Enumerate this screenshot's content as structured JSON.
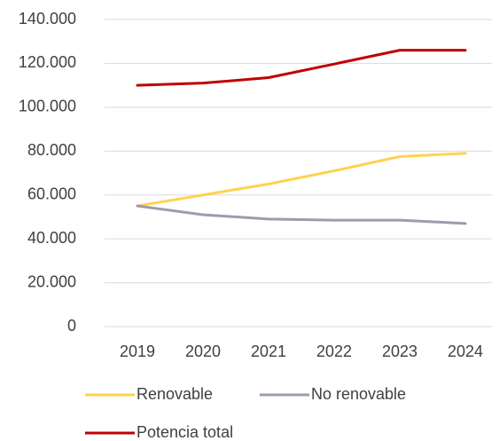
{
  "chart_data": {
    "type": "line",
    "categories": [
      "2019",
      "2020",
      "2021",
      "2022",
      "2023",
      "2024"
    ],
    "series": [
      {
        "name": "Renovable",
        "color": "#ffd24f",
        "values": [
          55000,
          60000,
          65000,
          71000,
          77500,
          79000
        ]
      },
      {
        "name": "No renovable",
        "color": "#9c9cab",
        "values": [
          55000,
          51000,
          49000,
          48500,
          48500,
          47000
        ]
      },
      {
        "name": "Potencia total",
        "color": "#c00000",
        "values": [
          110000,
          111000,
          113500,
          119700,
          126000,
          126000
        ]
      }
    ],
    "ylim": [
      0,
      140000
    ],
    "yticks": [
      0,
      {
        "value": 20000,
        "label": "20.000"
      },
      {
        "value": 40000,
        "label": "40.000"
      },
      {
        "value": 60000,
        "label": "60.000"
      },
      {
        "value": 80000,
        "label": "80.000"
      },
      {
        "value": 100000,
        "label": "100.000"
      },
      {
        "value": 120000,
        "label": "120.000"
      },
      {
        "value": 140000,
        "label": "140.000"
      }
    ],
    "grid": true,
    "legend": "bottom"
  }
}
